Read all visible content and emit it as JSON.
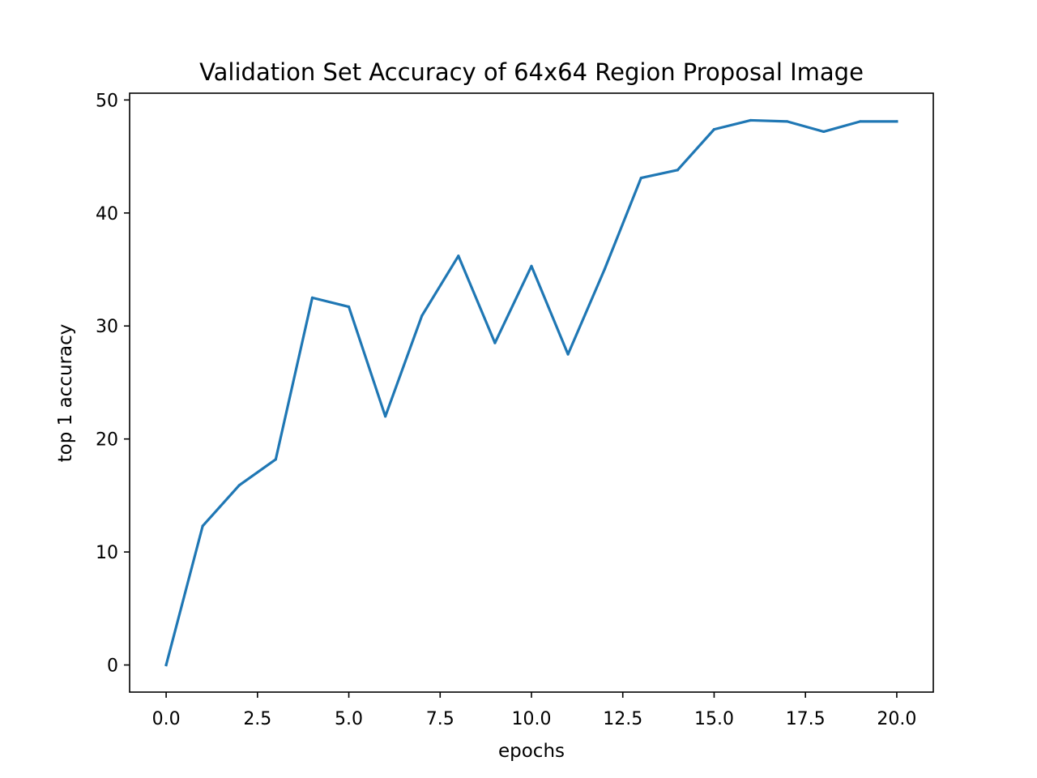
{
  "chart_data": {
    "type": "line",
    "title": "Validation Set Accuracy of 64x64 Region Proposal Image",
    "xlabel": "epochs",
    "ylabel": "top 1 accuracy",
    "xlim": [
      -1.0,
      21.0
    ],
    "ylim": [
      -2.4,
      50.6
    ],
    "xticks": [
      "0.0",
      "2.5",
      "5.0",
      "7.5",
      "10.0",
      "12.5",
      "15.0",
      "17.5",
      "20.0"
    ],
    "xtick_values": [
      0,
      2.5,
      5,
      7.5,
      10,
      12.5,
      15,
      17.5,
      20
    ],
    "yticks": [
      "0",
      "10",
      "20",
      "30",
      "40",
      "50"
    ],
    "ytick_values": [
      0,
      10,
      20,
      30,
      40,
      50
    ],
    "grid": false,
    "color": "#1f77b4",
    "series": [
      {
        "x": [
          0,
          1,
          2,
          3,
          4,
          5,
          6,
          7,
          8,
          9,
          10,
          11,
          12,
          13,
          14,
          15,
          16,
          17,
          18,
          19,
          20
        ],
        "values": [
          0.0,
          12.3,
          15.9,
          18.2,
          32.5,
          31.7,
          22.0,
          30.9,
          36.2,
          28.5,
          35.3,
          27.5,
          35.0,
          43.1,
          43.8,
          47.4,
          48.2,
          48.1,
          47.2,
          48.1,
          48.1
        ]
      }
    ]
  }
}
